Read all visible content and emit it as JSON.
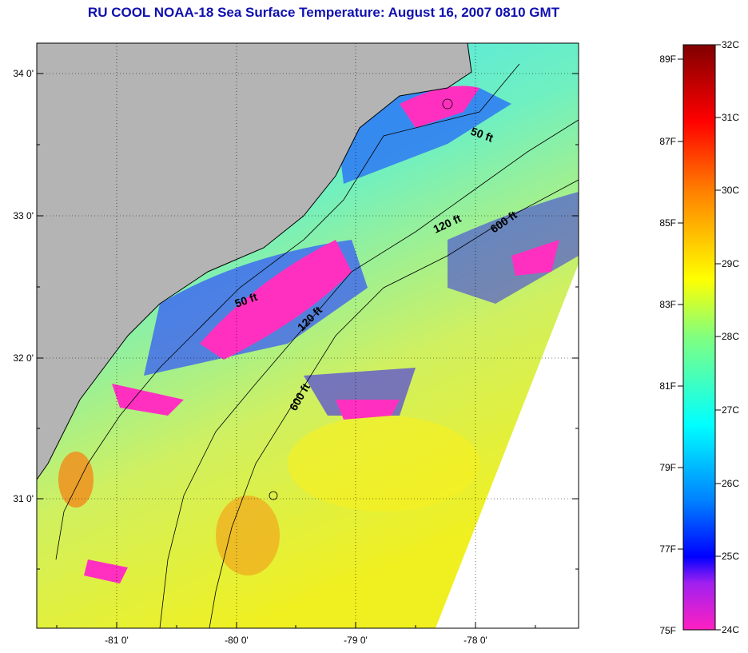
{
  "title": "RU COOL  NOAA-18  Sea Surface Temperature:  August 16, 2007 0810 GMT",
  "map": {
    "lat_labels": [
      "34 0'",
      "33 0'",
      "32 0'",
      "31 0'"
    ],
    "lon_labels": [
      "-81 0'",
      "-80 0'",
      "-79 0'",
      "-78 0'"
    ],
    "contours": [
      {
        "name": "50 ft",
        "label": "50 ft"
      },
      {
        "name": "50 ft",
        "label": "50 ft"
      },
      {
        "name": "120 ft",
        "label": "120 ft"
      },
      {
        "name": "120 ft",
        "label": "120 ft"
      },
      {
        "name": "600 ft",
        "label": "600 ft"
      },
      {
        "name": "600 ft",
        "label": "600 ft"
      }
    ]
  },
  "colorbar": {
    "fahrenheit": [
      "89F",
      "87F",
      "85F",
      "83F",
      "81F",
      "79F",
      "77F",
      "75F"
    ],
    "celsius": [
      "32C",
      "31C",
      "30C",
      "29C",
      "28C",
      "27C",
      "26C",
      "25C",
      "24C"
    ]
  },
  "colors": {
    "land": "#b4b4b4",
    "title": "#1010b0"
  }
}
